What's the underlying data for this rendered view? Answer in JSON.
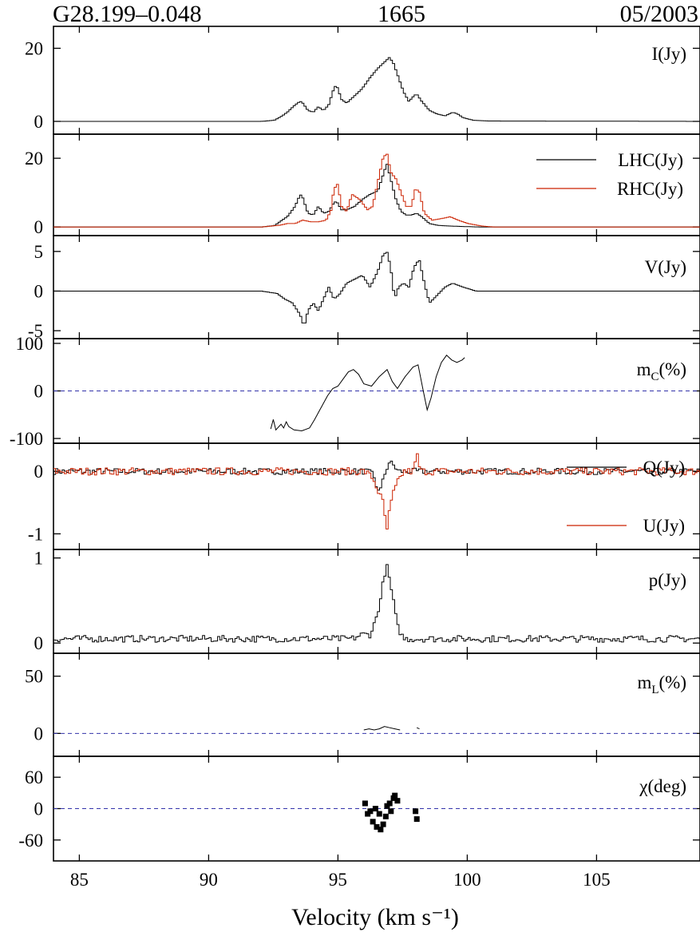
{
  "header": {
    "left": "G28.199–0.048",
    "center": "1665",
    "right": "05/2003"
  },
  "chart_data": {
    "type": "line",
    "xlabel": "Velocity (km s⁻¹)",
    "xlim": [
      84.0,
      109.0
    ],
    "xticks": [
      85,
      90,
      95,
      100,
      105
    ],
    "colors": {
      "black": "#000000",
      "red": "#cc2200",
      "zero_line": "#3333aa"
    },
    "panels": [
      {
        "id": "I",
        "label": "I(Jy)",
        "ylim": [
          -3.5,
          26
        ],
        "yticks": [
          {
            "v": 0,
            "t": "0"
          },
          {
            "v": 20,
            "t": "20"
          }
        ],
        "series": [
          {
            "name": "I(Jy)",
            "color": "black",
            "step": true,
            "x": [
              84,
              92,
              92.5,
              92.8,
              93.0,
              93.3,
              93.5,
              93.6,
              93.8,
              94.0,
              94.2,
              94.4,
              94.6,
              94.8,
              94.9,
              95.1,
              95.3,
              95.6,
              95.9,
              96.2,
              96.5,
              96.8,
              96.95,
              97.1,
              97.3,
              97.5,
              97.7,
              97.9,
              98.0,
              98.2,
              98.5,
              98.8,
              99.1,
              99.4,
              99.6,
              99.8,
              100.2,
              100.8,
              109
            ],
            "y": [
              0,
              0,
              0.3,
              1.5,
              2.5,
              4.5,
              5.5,
              5.0,
              3.0,
              2.5,
              4.0,
              3.0,
              4.5,
              9.0,
              10.0,
              6.0,
              5.0,
              7.0,
              9.0,
              12.0,
              14.5,
              16.5,
              17.5,
              16.0,
              12.0,
              8.0,
              5.5,
              7.0,
              7.5,
              5.5,
              3.0,
              2.0,
              1.5,
              2.5,
              2.0,
              1.0,
              0.3,
              0.1,
              0
            ]
          }
        ]
      },
      {
        "id": "LR",
        "label": "",
        "ylim": [
          -2.5,
          27
        ],
        "yticks": [
          {
            "v": 0,
            "t": "0"
          },
          {
            "v": 20,
            "t": "20"
          }
        ],
        "legend": [
          "LHC(Jy)",
          "RHC(Jy)"
        ],
        "series": [
          {
            "name": "LHC(Jy)",
            "color": "black",
            "step": true,
            "x": [
              84,
              92,
              92.5,
              92.8,
              93.0,
              93.3,
              93.5,
              93.6,
              93.8,
              94.0,
              94.2,
              94.4,
              94.6,
              94.8,
              94.9,
              95.1,
              95.3,
              95.6,
              95.9,
              96.2,
              96.5,
              96.7,
              96.85,
              97.0,
              97.2,
              97.4,
              97.6,
              97.8,
              98.0,
              98.2,
              98.5,
              98.8,
              99.2,
              99.6,
              100.0,
              100.5,
              109
            ],
            "y": [
              0,
              0,
              0.4,
              2.0,
              3.0,
              6.0,
              9.5,
              8.5,
              4.0,
              3.5,
              6.0,
              4.0,
              4.5,
              7.0,
              7.5,
              5.0,
              5.0,
              6.0,
              8.0,
              9.5,
              10.5,
              15.0,
              18.5,
              14.0,
              8.0,
              4.5,
              3.5,
              3.5,
              4.0,
              3.0,
              1.0,
              0.5,
              0.3,
              0.2,
              0.1,
              0,
              0
            ]
          },
          {
            "name": "RHC(Jy)",
            "color": "red",
            "step": true,
            "x": [
              84,
              92,
              92.7,
              93.0,
              93.3,
              93.6,
              93.9,
              94.2,
              94.5,
              94.7,
              94.8,
              94.95,
              95.1,
              95.3,
              95.5,
              95.8,
              96.1,
              96.3,
              96.5,
              96.7,
              96.85,
              97.0,
              97.2,
              97.4,
              97.6,
              97.8,
              97.95,
              98.1,
              98.3,
              98.6,
              99.0,
              99.3,
              99.6,
              100.0,
              100.5,
              101.0,
              109
            ],
            "y": [
              0,
              0,
              0.5,
              1.0,
              1.0,
              2.0,
              1.5,
              1.5,
              2.0,
              5.0,
              11.0,
              12.5,
              6.0,
              4.5,
              9.5,
              8.0,
              5.0,
              6.0,
              13.0,
              20.0,
              21.5,
              16.0,
              14.0,
              10.0,
              6.0,
              6.0,
              11.0,
              10.5,
              4.0,
              2.0,
              2.5,
              3.0,
              2.0,
              1.0,
              0.3,
              0,
              0
            ]
          }
        ]
      },
      {
        "id": "V",
        "label": "V(Jy)",
        "ylim": [
          -6,
          7
        ],
        "yticks": [
          {
            "v": 5,
            "t": "5"
          },
          {
            "v": 0,
            "t": "0"
          },
          {
            "v": -5,
            "t": "-5"
          }
        ],
        "series": [
          {
            "name": "V(Jy)",
            "color": "black",
            "step": true,
            "x": [
              84,
              92,
              92.6,
              92.9,
              93.2,
              93.5,
              93.65,
              93.8,
              94.0,
              94.2,
              94.4,
              94.6,
              94.8,
              95.0,
              95.3,
              95.6,
              95.9,
              96.2,
              96.5,
              96.7,
              96.85,
              97.0,
              97.15,
              97.3,
              97.5,
              97.7,
              97.9,
              98.1,
              98.3,
              98.5,
              98.8,
              99.1,
              99.4,
              99.8,
              100.3,
              109
            ],
            "y": [
              0,
              0,
              -0.3,
              -1.0,
              -1.5,
              -3.0,
              -4.5,
              -2.5,
              -1.5,
              -2.5,
              -1.0,
              0.5,
              -1.0,
              -0.5,
              1.0,
              1.5,
              2.0,
              0.5,
              2.5,
              4.5,
              5.0,
              3.0,
              -1.0,
              0.5,
              1.0,
              0.5,
              3.0,
              4.0,
              1.0,
              -1.5,
              -0.5,
              0.5,
              1.0,
              0.5,
              0,
              0
            ]
          }
        ]
      },
      {
        "id": "mc",
        "label": "m",
        "label_sub": "C",
        "label_tail": "(%)",
        "ylim": [
          -110,
          110
        ],
        "yticks": [
          {
            "v": 100,
            "t": "100"
          },
          {
            "v": 0,
            "t": "0"
          },
          {
            "v": -100,
            "t": "-100"
          }
        ],
        "zero_line": true,
        "series": [
          {
            "name": "m_C(%)",
            "color": "black",
            "step": false,
            "x": [
              92.4,
              92.5,
              92.6,
              92.8,
              92.9,
              93.0,
              93.1,
              93.3,
              93.6,
              93.9,
              94.1,
              94.3,
              94.6,
              94.8,
              95.0,
              95.2,
              95.4,
              95.6,
              95.8,
              96.0,
              96.3,
              96.6,
              96.9,
              97.1,
              97.3,
              97.6,
              97.9,
              98.1,
              98.3,
              98.45,
              98.6,
              98.8,
              99.0,
              99.2,
              99.4,
              99.6,
              99.8,
              99.9
            ],
            "y": [
              -80,
              -60,
              -82,
              -70,
              -78,
              -65,
              -75,
              -82,
              -84,
              -78,
              -60,
              -40,
              -10,
              5,
              10,
              25,
              40,
              45,
              35,
              15,
              10,
              30,
              45,
              20,
              5,
              30,
              50,
              55,
              0,
              -40,
              -15,
              30,
              60,
              75,
              65,
              60,
              65,
              70
            ]
          }
        ]
      },
      {
        "id": "QU",
        "label": "",
        "ylim": [
          -1.25,
          0.45
        ],
        "yticks": [
          {
            "v": 0,
            "t": "0"
          },
          {
            "v": -1,
            "t": "-1"
          }
        ],
        "legend": [
          "Q(Jy)",
          "U(Jy)"
        ],
        "series": [
          {
            "name": "Q(Jy)",
            "color": "black",
            "step": true,
            "noise": 0.05,
            "x": [
              84,
              95.8,
              96.1,
              96.3,
              96.45,
              96.6,
              96.8,
              96.95,
              97.1,
              97.3,
              97.5,
              109
            ],
            "y": [
              0,
              0,
              0,
              -0.05,
              -0.25,
              -0.3,
              0,
              0.15,
              0.1,
              0,
              0,
              0
            ]
          },
          {
            "name": "U(Jy)",
            "color": "red",
            "step": true,
            "noise": 0.06,
            "x": [
              84,
              96.0,
              96.3,
              96.5,
              96.7,
              96.85,
              96.95,
              97.1,
              97.3,
              97.5,
              97.9,
              98.0,
              98.15,
              98.4,
              109
            ],
            "y": [
              0,
              0,
              -0.1,
              -0.3,
              -0.5,
              -0.95,
              -0.65,
              -0.35,
              -0.15,
              0,
              0,
              0.3,
              0,
              0,
              0
            ]
          }
        ]
      },
      {
        "id": "p",
        "label": "p(Jy)",
        "ylim": [
          -0.12,
          1.1
        ],
        "yticks": [
          {
            "v": 1,
            "t": "1"
          },
          {
            "v": 0,
            "t": "0"
          }
        ],
        "series": [
          {
            "name": "p(Jy)",
            "color": "black",
            "step": true,
            "noise": 0.04,
            "floor": 0.01,
            "x": [
              84,
              95.5,
              95.9,
              96.2,
              96.4,
              96.6,
              96.75,
              96.85,
              96.95,
              97.1,
              97.25,
              97.5,
              109
            ],
            "y": [
              0.05,
              0.05,
              0.1,
              0.1,
              0.25,
              0.5,
              0.8,
              0.9,
              0.75,
              0.5,
              0.2,
              0.05,
              0.05
            ]
          }
        ]
      },
      {
        "id": "ml",
        "label": "m",
        "label_sub": "L",
        "label_tail": "(%)",
        "ylim": [
          -20,
          70
        ],
        "yticks": [
          {
            "v": 50,
            "t": "50"
          },
          {
            "v": 0,
            "t": "0"
          }
        ],
        "zero_line": true,
        "series": [
          {
            "name": "m_L(%)",
            "color": "black",
            "step": false,
            "x": [
              96.0,
              96.2,
              96.4,
              96.6,
              96.8,
              97.0,
              97.2,
              97.4
            ],
            "y": [
              3,
              4,
              3,
              4,
              6,
              5,
              4,
              3
            ]
          },
          {
            "name": "m_L(%) b",
            "color": "black",
            "step": false,
            "x": [
              98.05,
              98.15
            ],
            "y": [
              5,
              4
            ]
          }
        ]
      },
      {
        "id": "chi",
        "label": "χ(deg)",
        "ylim": [
          -100,
          100
        ],
        "yticks": [
          {
            "v": 60,
            "t": "60"
          },
          {
            "v": 0,
            "t": "0"
          },
          {
            "v": -60,
            "t": "-60"
          }
        ],
        "zero_line": true,
        "series": [
          {
            "name": "χ(deg)",
            "color": "black",
            "markers": true,
            "x": [
              96.05,
              96.15,
              96.25,
              96.35,
              96.45,
              96.5,
              96.6,
              96.65,
              96.75,
              96.85,
              96.9,
              97.0,
              97.05,
              97.15,
              97.2,
              97.3,
              98.0,
              98.05
            ],
            "y": [
              10,
              -10,
              -5,
              -25,
              0,
              -35,
              -10,
              -40,
              -30,
              -15,
              5,
              10,
              -5,
              20,
              25,
              15,
              -5,
              -20
            ]
          }
        ]
      }
    ]
  }
}
